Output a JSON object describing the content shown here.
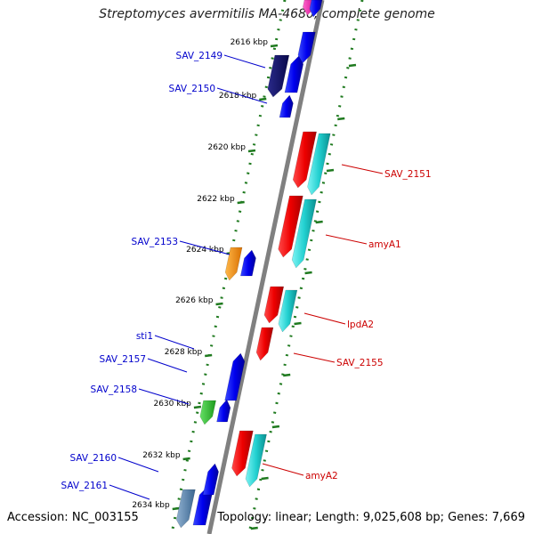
{
  "title": "Streptomyces avermitilis MA-4680, complete genome",
  "accession": "Accession: NC_003155",
  "topology": "Topology: linear; Length: 9,025,608 bp; Genes: 7,669",
  "colors": {
    "backbone": "#808080",
    "ticks": "#1f7a1f",
    "left_labels": "#0000cc",
    "right_labels": "#cc0000"
  },
  "ticks": [
    {
      "label": "2616 kbp"
    },
    {
      "label": "2618 kbp"
    },
    {
      "label": "2620 kbp"
    },
    {
      "label": "2622 kbp"
    },
    {
      "label": "2624 kbp"
    },
    {
      "label": "2626 kbp"
    },
    {
      "label": "2628 kbp"
    },
    {
      "label": "2630 kbp"
    },
    {
      "label": "2632 kbp"
    },
    {
      "label": "2634 kbp"
    }
  ],
  "left_genes": [
    {
      "label": "SAV_2149"
    },
    {
      "label": "SAV_2150"
    },
    {
      "label": "SAV_2153"
    },
    {
      "label": "sti1"
    },
    {
      "label": "SAV_2157"
    },
    {
      "label": "SAV_2158"
    },
    {
      "label": "SAV_2160"
    },
    {
      "label": "SAV_2161"
    }
  ],
  "right_genes": [
    {
      "label": "SAV_2151"
    },
    {
      "label": "amyA1"
    },
    {
      "label": "lpdA2"
    },
    {
      "label": "SAV_2155"
    },
    {
      "label": "amyA2"
    }
  ]
}
